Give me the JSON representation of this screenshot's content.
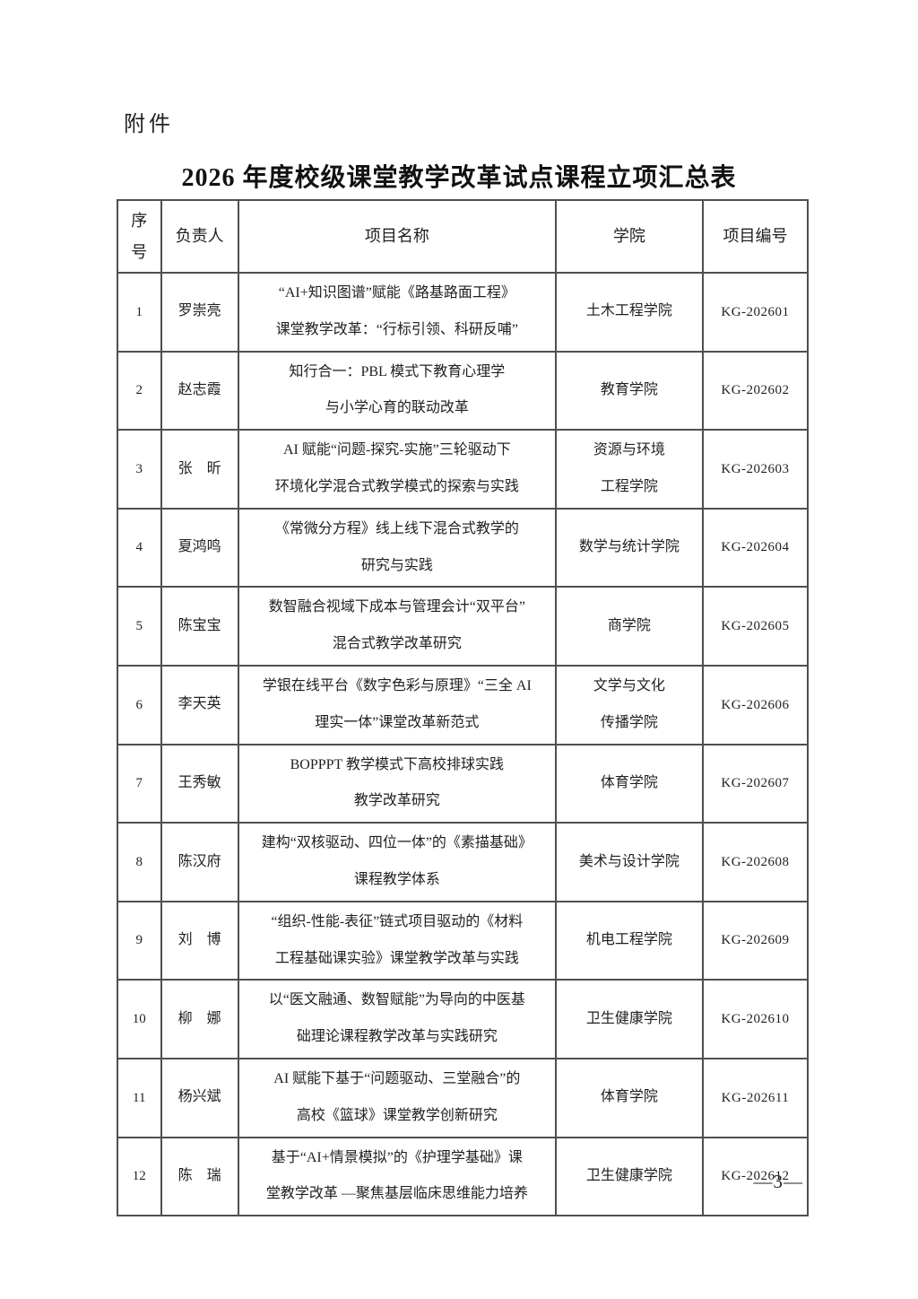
{
  "document": {
    "attachment_label": "附件",
    "title": "2026 年度校级课堂教学改革试点课程立项汇总表",
    "page_number": "—3—"
  },
  "table": {
    "headers": {
      "no": "序\n号",
      "leader": "负责人",
      "project": "项目名称",
      "college": "学院",
      "code": "项目编号"
    },
    "rows": [
      {
        "no": "1",
        "leader": "罗崇亮",
        "project": "“AI+知识图谱”赋能《路基路面工程》\n课堂教学改革：“行标引领、科研反哺”",
        "college": "土木工程学院",
        "code": "KG-202601"
      },
      {
        "no": "2",
        "leader": "赵志霞",
        "project": "知行合一：PBL 模式下教育心理学\n与小学心育的联动改革",
        "college": "教育学院",
        "code": "KG-202602"
      },
      {
        "no": "3",
        "leader": "张　昕",
        "project": "AI 赋能“问题-探究-实施”三轮驱动下\n环境化学混合式教学模式的探索与实践",
        "college": "资源与环境\n工程学院",
        "code": "KG-202603"
      },
      {
        "no": "4",
        "leader": "夏鸿鸣",
        "project": "《常微分方程》线上线下混合式教学的\n研究与实践",
        "college": "数学与统计学院",
        "code": "KG-202604"
      },
      {
        "no": "5",
        "leader": "陈宝宝",
        "project": "数智融合视域下成本与管理会计“双平台”\n混合式教学改革研究",
        "college": "商学院",
        "code": "KG-202605"
      },
      {
        "no": "6",
        "leader": "李天英",
        "project": "学银在线平台《数字色彩与原理》“三全 AI\n理实一体”课堂改革新范式",
        "college": "文学与文化\n传播学院",
        "code": "KG-202606"
      },
      {
        "no": "7",
        "leader": "王秀敏",
        "project": "BOPPPT 教学模式下高校排球实践\n教学改革研究",
        "college": "体育学院",
        "code": "KG-202607"
      },
      {
        "no": "8",
        "leader": "陈汉府",
        "project": "建构“双核驱动、四位一体”的《素描基础》\n课程教学体系",
        "college": "美术与设计学院",
        "code": "KG-202608"
      },
      {
        "no": "9",
        "leader": "刘　博",
        "project": "“组织-性能-表征”链式项目驱动的《材料\n工程基础课实验》课堂教学改革与实践",
        "college": "机电工程学院",
        "code": "KG-202609"
      },
      {
        "no": "10",
        "leader": "柳　娜",
        "project": "以“医文融通、数智赋能”为导向的中医基\n础理论课程教学改革与实践研究",
        "college": "卫生健康学院",
        "code": "KG-202610"
      },
      {
        "no": "11",
        "leader": "杨兴斌",
        "project": "AI 赋能下基于“问题驱动、三堂融合”的\n高校《篮球》课堂教学创新研究",
        "college": "体育学院",
        "code": "KG-202611"
      },
      {
        "no": "12",
        "leader": "陈　瑞",
        "project": "基于“AI+情景模拟”的《护理学基础》课\n堂教学改革 —聚焦基层临床思维能力培养",
        "college": "卫生健康学院",
        "code": "KG-202612"
      }
    ]
  }
}
